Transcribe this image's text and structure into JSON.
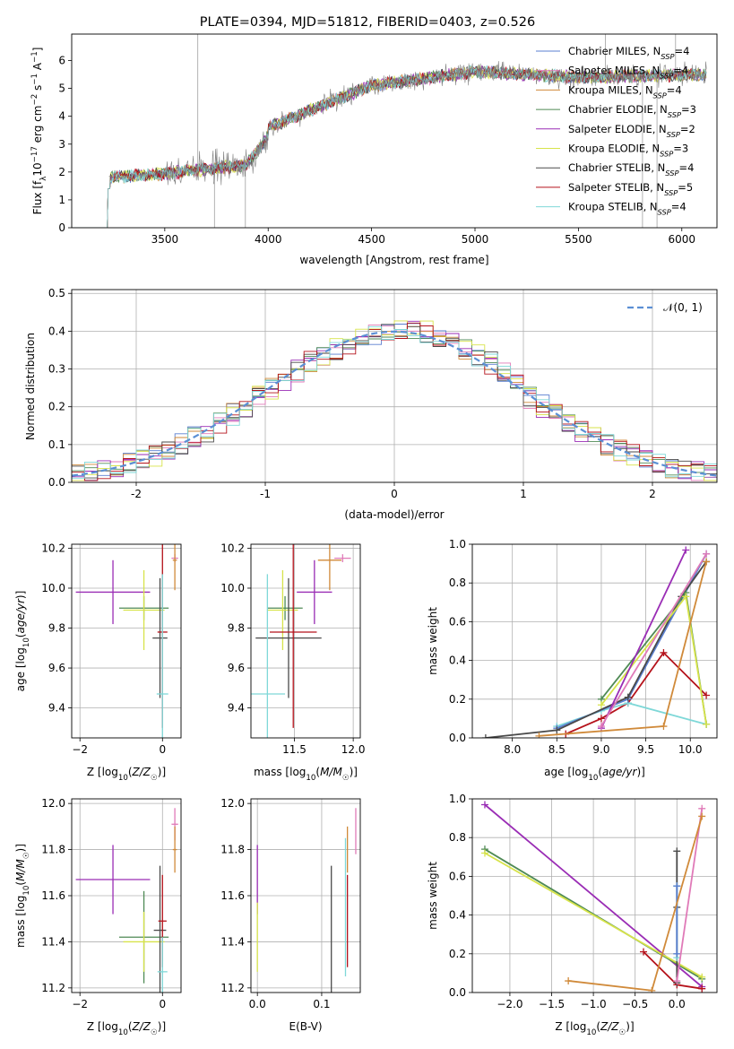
{
  "chart_data": [
    {
      "type": "line",
      "title": "PLATE=0394, MJD=51812, FIBERID=0403, z=0.526",
      "xlabel": "wavelength [Angstrom, rest frame]",
      "ylabel": "Flux [f_λ10^-17 erg cm^-2 s^-1 A^-1]",
      "xlim": [
        3050,
        6170
      ],
      "ylim": [
        0,
        6.95
      ],
      "xticks": [
        3500,
        4000,
        4500,
        5000,
        5500,
        6000
      ],
      "yticks": [
        0,
        1,
        2,
        3,
        4,
        5,
        6
      ],
      "legend": "top-right",
      "series": [
        {
          "name": "Chabrier MILES, N_SSP=4",
          "color": "#5a7fd0"
        },
        {
          "name": "Salpeter MILES, N_SSP=4",
          "color": "#e07ab8"
        },
        {
          "name": "Kroupa MILES, N_SSP=4",
          "color": "#d08a3a"
        },
        {
          "name": "Chabrier ELODIE, N_SSP=3",
          "color": "#4f8a55"
        },
        {
          "name": "Salpeter ELODIE, N_SSP=2",
          "color": "#9a2db5"
        },
        {
          "name": "Kroupa ELODIE, N_SSP=3",
          "color": "#d7e34a"
        },
        {
          "name": "Chabrier STELIB, N_SSP=4",
          "color": "#4a4a4a"
        },
        {
          "name": "Salpeter STELIB, N_SSP=5",
          "color": "#b5121b"
        },
        {
          "name": "Kroupa STELIB, N_SSP=4",
          "color": "#7fd8d8"
        }
      ],
      "data_series": {
        "name": "data",
        "color": "#808080"
      }
    },
    {
      "type": "line",
      "xlabel": "(data-model)/error",
      "ylabel": "Normed distribution",
      "xlim": [
        -2.5,
        2.5
      ],
      "ylim": [
        0,
        0.51
      ],
      "xticks": [
        -2,
        -1,
        0,
        1,
        2
      ],
      "yticks": [
        0.0,
        0.1,
        0.2,
        0.3,
        0.4,
        0.5
      ],
      "grid": true,
      "legend": "top-right",
      "legend_label": "𝒩(0, 1)"
    },
    {
      "type": "scatter",
      "xlabel": "Z [log10(Z/Z☉)]",
      "ylabel": "age [log10(age/yr)]",
      "xlim": [
        -2.2,
        0.45
      ],
      "ylim": [
        9.25,
        10.22
      ],
      "xticks": [
        -2,
        0
      ],
      "yticks": [
        9.4,
        9.6,
        9.8,
        10.0,
        10.2
      ],
      "grid": true,
      "points": [
        {
          "x": -1.2,
          "y": 9.98,
          "xerr": 0.9,
          "yerr": 0.16,
          "color": "#9a2db5"
        },
        {
          "x": -0.45,
          "y": 9.9,
          "xerr": 0.6,
          "yerr": 0.06,
          "color": "#4f8a55"
        },
        {
          "x": -0.45,
          "y": 9.89,
          "xerr": 0.5,
          "yerr": 0.2,
          "color": "#d7e34a"
        },
        {
          "x": -0.06,
          "y": 9.75,
          "xerr": 0.18,
          "yerr": 0.3,
          "color": "#4a4a4a"
        },
        {
          "x": 0.0,
          "y": 9.78,
          "xerr": 0.12,
          "yerr": 0.48,
          "color": "#b5121b"
        },
        {
          "x": 0.0,
          "y": 9.47,
          "xerr": 0.14,
          "yerr": 0.6,
          "color": "#7fd8d8"
        },
        {
          "x": 0.3,
          "y": 10.15,
          "xerr": 0.08,
          "yerr": 0.02,
          "color": "#e07ab8"
        },
        {
          "x": 0.3,
          "y": 10.14,
          "xerr": 0.05,
          "yerr": 0.15,
          "color": "#d08a3a"
        }
      ]
    },
    {
      "type": "scatter",
      "xlabel": "mass [log10(M/M☉)]",
      "xlim": [
        11.13,
        12.06
      ],
      "ylim": [
        9.25,
        10.22
      ],
      "xticks": [
        11.5,
        12.0
      ],
      "yticks": [
        9.4,
        9.6,
        9.8,
        10.0,
        10.2
      ],
      "grid": true,
      "points": [
        {
          "x": 11.67,
          "y": 9.98,
          "xerr": 0.15,
          "yerr": 0.16,
          "color": "#9a2db5"
        },
        {
          "x": 11.42,
          "y": 9.9,
          "xerr": 0.15,
          "yerr": 0.06,
          "color": "#4f8a55"
        },
        {
          "x": 11.4,
          "y": 9.89,
          "xerr": 0.13,
          "yerr": 0.2,
          "color": "#d7e34a"
        },
        {
          "x": 11.45,
          "y": 9.75,
          "xerr": 0.28,
          "yerr": 0.3,
          "color": "#4a4a4a"
        },
        {
          "x": 11.49,
          "y": 9.78,
          "xerr": 0.2,
          "yerr": 0.48,
          "color": "#b5121b"
        },
        {
          "x": 11.27,
          "y": 9.47,
          "xerr": 0.15,
          "yerr": 0.6,
          "color": "#7fd8d8"
        },
        {
          "x": 11.91,
          "y": 10.15,
          "xerr": 0.07,
          "yerr": 0.02,
          "color": "#e07ab8"
        },
        {
          "x": 11.8,
          "y": 10.14,
          "xerr": 0.1,
          "yerr": 0.15,
          "color": "#d08a3a"
        }
      ]
    },
    {
      "type": "line",
      "xlabel": "age  [log10(age/yr)]",
      "ylabel": "mass weight",
      "xlim": [
        7.55,
        10.3
      ],
      "ylim": [
        0,
        1.0
      ],
      "xticks": [
        8.0,
        8.5,
        9.0,
        9.5,
        10.0
      ],
      "yticks": [
        0.0,
        0.2,
        0.4,
        0.6,
        0.8,
        1.0
      ],
      "grid": true,
      "series": [
        {
          "color": "#b5121b",
          "x": [
            8.6,
            9.0,
            9.3,
            9.7,
            10.18
          ],
          "y": [
            0.02,
            0.1,
            0.18,
            0.44,
            0.22
          ]
        },
        {
          "color": "#7fd8d8",
          "x": [
            8.5,
            9.0,
            9.3,
            10.18
          ],
          "y": [
            0.06,
            0.14,
            0.18,
            0.07
          ]
        },
        {
          "color": "#5a7fd0",
          "x": [
            8.5,
            9.3,
            10.18
          ],
          "y": [
            0.05,
            0.2,
            0.95
          ]
        },
        {
          "color": "#4a4a4a",
          "x": [
            7.7,
            8.5,
            9.3,
            9.9,
            10.18
          ],
          "y": [
            0.0,
            0.04,
            0.21,
            0.73,
            0.91
          ]
        },
        {
          "color": "#4f8a55",
          "x": [
            9.0,
            9.95,
            10.18
          ],
          "y": [
            0.2,
            0.75,
            0.07
          ]
        },
        {
          "color": "#d7e34a",
          "x": [
            9.0,
            9.95,
            10.18
          ],
          "y": [
            0.17,
            0.73,
            0.07
          ]
        },
        {
          "color": "#9a2db5",
          "x": [
            9.0,
            9.95
          ],
          "y": [
            0.05,
            0.97
          ]
        },
        {
          "color": "#e07ab8",
          "x": [
            9.0,
            10.18
          ],
          "y": [
            0.06,
            0.95
          ]
        },
        {
          "color": "#d08a3a",
          "x": [
            8.3,
            9.7,
            10.18
          ],
          "y": [
            0.01,
            0.06,
            0.91
          ]
        }
      ]
    },
    {
      "type": "scatter",
      "xlabel": "Z [log10(Z/Z☉)]",
      "ylabel": "mass [log10(M/M☉)]",
      "xlim": [
        -2.2,
        0.45
      ],
      "ylim": [
        11.18,
        12.02
      ],
      "xticks": [
        -2,
        0
      ],
      "yticks": [
        11.2,
        11.4,
        11.6,
        11.8,
        12.0
      ],
      "grid": true,
      "points": [
        {
          "x": -1.2,
          "y": 11.67,
          "xerr": 0.9,
          "yerr": 0.15,
          "color": "#9a2db5"
        },
        {
          "x": -0.45,
          "y": 11.42,
          "xerr": 0.6,
          "yerr": 0.2,
          "color": "#4f8a55"
        },
        {
          "x": -0.45,
          "y": 11.4,
          "xerr": 0.5,
          "yerr": 0.13,
          "color": "#d7e34a"
        },
        {
          "x": -0.06,
          "y": 11.45,
          "xerr": 0.15,
          "yerr": 0.28,
          "color": "#4a4a4a"
        },
        {
          "x": 0.0,
          "y": 11.49,
          "xerr": 0.1,
          "yerr": 0.2,
          "color": "#b5121b"
        },
        {
          "x": 0.0,
          "y": 11.27,
          "xerr": 0.12,
          "yerr": 0.15,
          "color": "#7fd8d8"
        },
        {
          "x": 0.3,
          "y": 11.91,
          "xerr": 0.08,
          "yerr": 0.07,
          "color": "#e07ab8"
        },
        {
          "x": 0.3,
          "y": 11.8,
          "xerr": 0.05,
          "yerr": 0.1,
          "color": "#d08a3a"
        }
      ]
    },
    {
      "type": "scatter",
      "xlabel": "E(B-V)",
      "xlim": [
        -0.01,
        0.16
      ],
      "ylim": [
        11.18,
        12.02
      ],
      "xticks": [
        0.0,
        0.1
      ],
      "yticks": [
        11.2,
        11.4,
        11.6,
        11.8,
        12.0
      ],
      "grid": true,
      "points": [
        {
          "x": 0.0,
          "y": 11.67,
          "yerr": 0.15,
          "color": "#9a2db5"
        },
        {
          "x": 0.0,
          "y": 11.42,
          "yerr": 0.15,
          "color": "#d7e34a"
        },
        {
          "x": 0.115,
          "y": 11.45,
          "yerr": 0.28,
          "color": "#4a4a4a"
        },
        {
          "x": 0.14,
          "y": 11.49,
          "yerr": 0.2,
          "color": "#b5121b"
        },
        {
          "x": 0.137,
          "y": 11.55,
          "yerr": 0.3,
          "color": "#7fd8d8"
        },
        {
          "x": 0.14,
          "y": 11.8,
          "yerr": 0.1,
          "color": "#d08a3a"
        },
        {
          "x": 0.153,
          "y": 11.88,
          "yerr": 0.1,
          "color": "#e07ab8"
        }
      ]
    },
    {
      "type": "line",
      "xlabel": "Z [log10(Z/Z☉)]",
      "ylabel": "mass weight",
      "xlim": [
        -2.45,
        0.48
      ],
      "ylim": [
        0,
        1.0
      ],
      "xticks": [
        -2.0,
        -1.5,
        -1.0,
        -0.5,
        0.0
      ],
      "yticks": [
        0.0,
        0.2,
        0.4,
        0.6,
        0.8,
        1.0
      ],
      "grid": true,
      "series": [
        {
          "color": "#9a2db5",
          "x": [
            -2.3,
            0.3
          ],
          "y": [
            0.97,
            0.03
          ]
        },
        {
          "color": "#4f8a55",
          "x": [
            -2.3,
            0.3
          ],
          "y": [
            0.74,
            0.07
          ]
        },
        {
          "color": "#d7e34a",
          "x": [
            -2.3,
            0.3
          ],
          "y": [
            0.72,
            0.08
          ]
        },
        {
          "color": "#b5121b",
          "x": [
            -0.4,
            0.0,
            0.3
          ],
          "y": [
            0.21,
            0.04,
            0.02
          ]
        },
        {
          "color": "#4a4a4a",
          "x": [
            0.0,
            0.0,
            0.0
          ],
          "y": [
            0.05,
            0.44,
            0.73
          ]
        },
        {
          "color": "#7fd8d8",
          "x": [
            0.0,
            0.0
          ],
          "y": [
            0.18,
            0.55
          ]
        },
        {
          "color": "#5a7fd0",
          "x": [
            0.0,
            0.0
          ],
          "y": [
            0.2,
            0.55
          ]
        },
        {
          "color": "#e07ab8",
          "x": [
            0.0,
            0.3
          ],
          "y": [
            0.06,
            0.95
          ]
        },
        {
          "color": "#d08a3a",
          "x": [
            -1.3,
            -0.3,
            0.3
          ],
          "y": [
            0.06,
            0.01,
            0.91
          ]
        }
      ]
    }
  ]
}
